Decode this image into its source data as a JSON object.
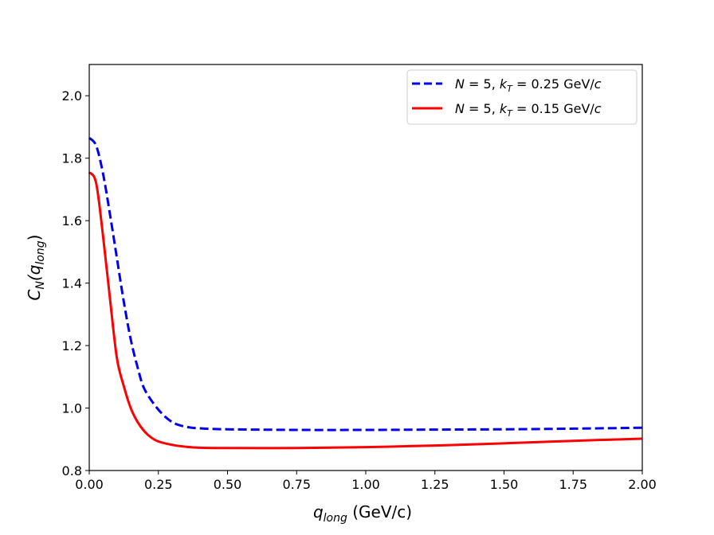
{
  "chart_data": {
    "type": "line",
    "xlabel": {
      "main": "q",
      "sub": "long",
      "unit": " (GeV/c)"
    },
    "ylabel": {
      "main": "C",
      "sub": "N",
      "open": "(q",
      "sub2": "long",
      "close": ")"
    },
    "xlim": [
      0.0,
      2.0
    ],
    "ylim": [
      0.8,
      2.1
    ],
    "xticks": [
      0.0,
      0.25,
      0.5,
      0.75,
      1.0,
      1.25,
      1.5,
      1.75,
      2.0
    ],
    "xtick_labels": [
      "0.00",
      "0.25",
      "0.50",
      "0.75",
      "1.00",
      "1.25",
      "1.50",
      "1.75",
      "2.00"
    ],
    "yticks": [
      0.8,
      1.0,
      1.2,
      1.4,
      1.6,
      1.8,
      2.0
    ],
    "ytick_labels": [
      "0.8",
      "1.0",
      "1.2",
      "1.4",
      "1.6",
      "1.8",
      "2.0"
    ],
    "grid": false,
    "legend_position": "top-right",
    "series": [
      {
        "name": "N = 5, kT = 0.25 GeV/c",
        "legend": {
          "n": "N",
          "eq1": " = 5, ",
          "k": "k",
          "ksub": "T",
          "eq2": " = 0.25 GeV/",
          "c": "c"
        },
        "color": "#0000ee",
        "style": "dashed",
        "x": [
          0.0,
          0.025,
          0.05,
          0.075,
          0.1,
          0.125,
          0.15,
          0.175,
          0.2,
          0.25,
          0.3,
          0.35,
          0.4,
          0.5,
          0.75,
          1.0,
          1.25,
          1.5,
          1.75,
          2.0
        ],
        "y": [
          1.865,
          1.84,
          1.75,
          1.62,
          1.48,
          1.34,
          1.22,
          1.13,
          1.06,
          0.995,
          0.955,
          0.94,
          0.935,
          0.932,
          0.93,
          0.93,
          0.931,
          0.932,
          0.934,
          0.937
        ]
      },
      {
        "name": "N = 5, kT = 0.15 GeV/c",
        "legend": {
          "n": "N",
          "eq1": " = 5, ",
          "k": "k",
          "ksub": "T",
          "eq2": " = 0.15 GeV/",
          "c": "c"
        },
        "color": "#ff0000",
        "style": "solid",
        "x": [
          0.0,
          0.025,
          0.05,
          0.075,
          0.1,
          0.125,
          0.15,
          0.175,
          0.2,
          0.225,
          0.25,
          0.3,
          0.35,
          0.4,
          0.5,
          0.75,
          1.0,
          1.25,
          1.5,
          1.75,
          2.0
        ],
        "y": [
          1.755,
          1.72,
          1.55,
          1.35,
          1.16,
          1.07,
          1.0,
          0.955,
          0.925,
          0.905,
          0.893,
          0.882,
          0.876,
          0.873,
          0.872,
          0.872,
          0.875,
          0.88,
          0.887,
          0.895,
          0.902
        ]
      }
    ]
  }
}
